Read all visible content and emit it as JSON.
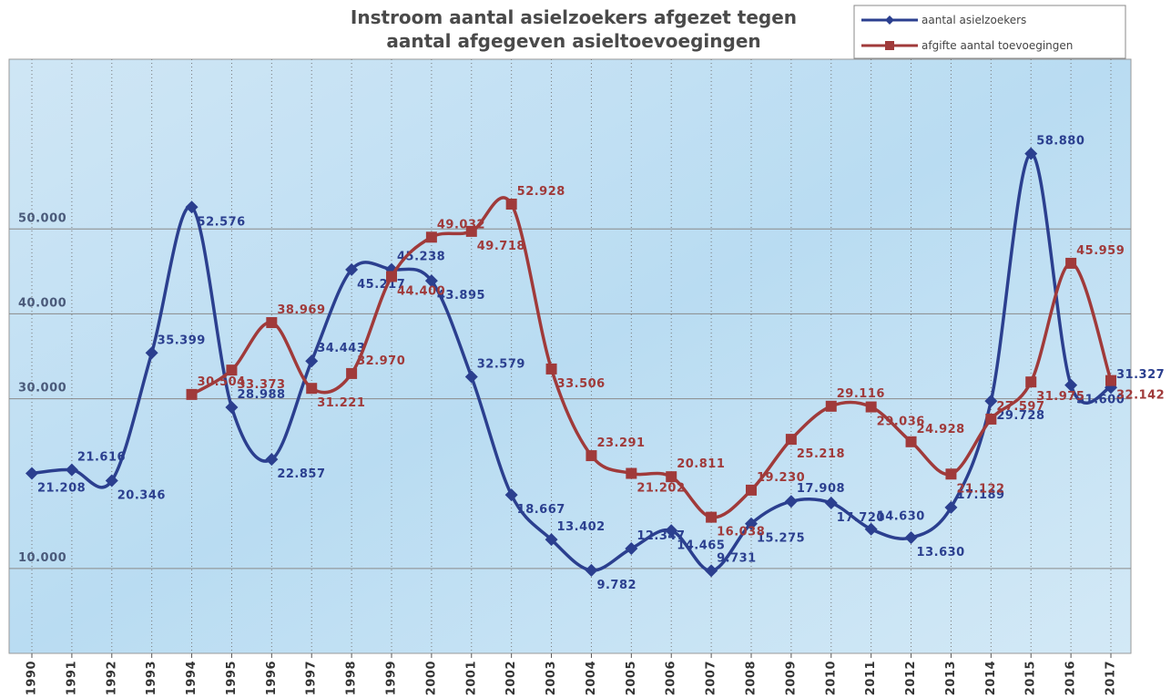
{
  "chart_data": {
    "type": "line",
    "title": "Instroom aantal asielzoekers afgezet tegen aantal afgegeven asieltoevoegingen",
    "categories": [
      "1990",
      "1991",
      "1992",
      "1993",
      "1994",
      "1995",
      "1996",
      "1997",
      "1998",
      "1999",
      "2000",
      "2001",
      "2002",
      "2003",
      "2004",
      "2005",
      "2006",
      "2007",
      "2008",
      "2009",
      "2010",
      "2011",
      "2012",
      "2013",
      "2014",
      "2015",
      "2016",
      "2017"
    ],
    "ylim": [
      0,
      70000
    ],
    "yticks": [
      {
        "value": 10000,
        "label": "10.000"
      },
      {
        "value": 30000,
        "label": "30.000"
      },
      {
        "value": 40000,
        "label": "40.000"
      },
      {
        "value": 50000,
        "label": "50.000"
      }
    ],
    "grid": true,
    "legend": "top-right",
    "series": [
      {
        "name": "aantal asielzoekers",
        "color": "#2b3f8f",
        "marker": "diamond",
        "values": [
          21208,
          21616,
          20346,
          35399,
          52576,
          28988,
          22857,
          34443,
          45217,
          45238,
          43895,
          32579,
          18667,
          13402,
          9782,
          12347,
          14465,
          9731,
          15275,
          17908,
          17720,
          14630,
          13630,
          17189,
          29728,
          58880,
          31600,
          31327
        ],
        "value_labels": [
          "21.208",
          "21.616",
          "20.346",
          "35.399",
          "52.576",
          "28.988",
          "22.857",
          "34.443",
          "45.217",
          "45.238",
          "43.895",
          "32.579",
          "18.667",
          "13.402",
          "9.782",
          "12.347",
          "14.465",
          "9.731",
          "15.275",
          "17.908",
          "17.720",
          "14.630",
          "13.630",
          "17.189",
          "29.728",
          "58.880",
          "31.600",
          "31.327"
        ]
      },
      {
        "name": "afgifte aantal toevoegingen",
        "color": "#a03a3a",
        "marker": "square",
        "values": [
          null,
          null,
          null,
          null,
          30504,
          33373,
          38969,
          31221,
          32970,
          44400,
          49032,
          49718,
          52928,
          33506,
          23291,
          21202,
          20811,
          16038,
          19230,
          25218,
          29116,
          29036,
          24928,
          21122,
          27597,
          31975,
          45959,
          32142
        ],
        "value_labels": [
          null,
          null,
          null,
          null,
          "30.504",
          "33.373",
          "38.969",
          "31.221",
          "32.970",
          "44.400",
          "49.032",
          "49.718",
          "52.928",
          "33.506",
          "23.291",
          "21.202",
          "20.811",
          "16.038",
          "19.230",
          "25.218",
          "29.116",
          "29.036",
          "24.928",
          "21.122",
          "27.597",
          "31.975",
          "45.959",
          "32.142"
        ]
      }
    ]
  }
}
